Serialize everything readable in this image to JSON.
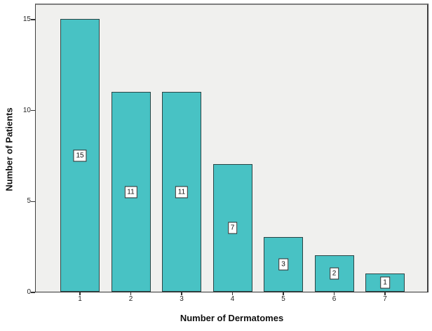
{
  "chart_data": {
    "type": "bar",
    "title": "",
    "categories": [
      "1",
      "2",
      "3",
      "4",
      "5",
      "6",
      "7"
    ],
    "values": [
      15,
      11,
      11,
      7,
      3,
      2,
      1
    ],
    "xlabel": "Number of Dermatomes",
    "ylabel": "Number of Patients",
    "ylim": [
      0,
      15.9
    ],
    "yticks": [
      0,
      5,
      10,
      15
    ],
    "grid": false,
    "legend": "none",
    "data_labels": true,
    "colors": {
      "page_bg": "#FFFFFF",
      "plot_bg": "#F0F0EE",
      "frame_top": "#7F7F7F",
      "frame_dark": "#3F3F3F",
      "axis": "#333333",
      "bar_fill": "#48C2C4",
      "bar_border": "#2B4545",
      "label_box_bg": "#FFFFFF",
      "label_box_border": "#2B2B2B",
      "text": "#111111",
      "tick_text": "#262626"
    }
  }
}
